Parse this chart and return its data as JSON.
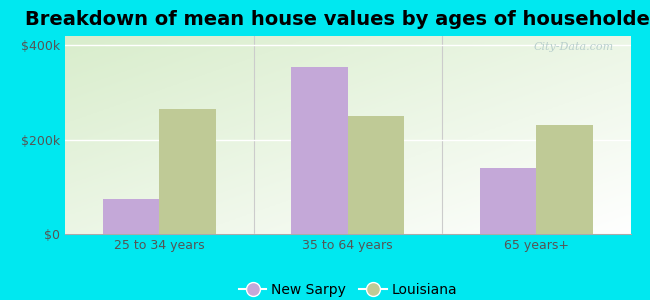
{
  "title": "Breakdown of mean house values by ages of householders",
  "categories": [
    "25 to 34 years",
    "35 to 64 years",
    "65 years+"
  ],
  "new_sarpy": [
    75000,
    355000,
    140000
  ],
  "louisiana": [
    265000,
    250000,
    232000
  ],
  "bar_color_sarpy": "#c4a8d8",
  "bar_color_louisiana": "#bfca96",
  "ylim": [
    0,
    420000
  ],
  "yticks": [
    0,
    200000,
    400000
  ],
  "ytick_labels": [
    "$0",
    "$200k",
    "$400k"
  ],
  "legend_sarpy": "New Sarpy",
  "legend_louisiana": "Louisiana",
  "outer_bg": "#00e8f0",
  "title_fontsize": 14,
  "tick_fontsize": 9,
  "legend_fontsize": 10,
  "bar_width": 0.3,
  "watermark": "City-Data.com"
}
